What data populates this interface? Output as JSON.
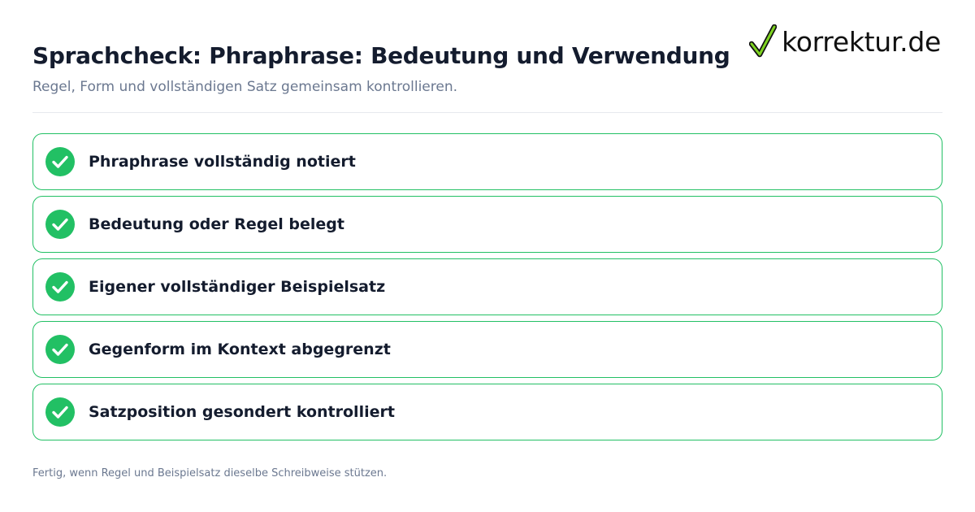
{
  "header": {
    "title": "Sprachcheck: Phraphrase: Bedeutung und Verwendung",
    "subtitle": "Regel, Form und vollständigen Satz gemeinsam kontrollieren."
  },
  "logo": {
    "text": "korrektur.de",
    "icon": "checkmark-icon",
    "accent_color": "#22c064"
  },
  "checklist": {
    "items": [
      {
        "label": "Phraphrase vollständig notiert",
        "checked": true
      },
      {
        "label": "Bedeutung oder Regel belegt",
        "checked": true
      },
      {
        "label": "Eigener vollständiger Beispielsatz",
        "checked": true
      },
      {
        "label": "Gegenform im Kontext abgegrenzt",
        "checked": true
      },
      {
        "label": "Satzposition gesondert kontrolliert",
        "checked": true
      }
    ],
    "check_color": "#22c064",
    "border_color": "#22c064"
  },
  "footer": {
    "note": "Fertig, wenn Regel und Beispielsatz dieselbe Schreibweise stützen."
  }
}
